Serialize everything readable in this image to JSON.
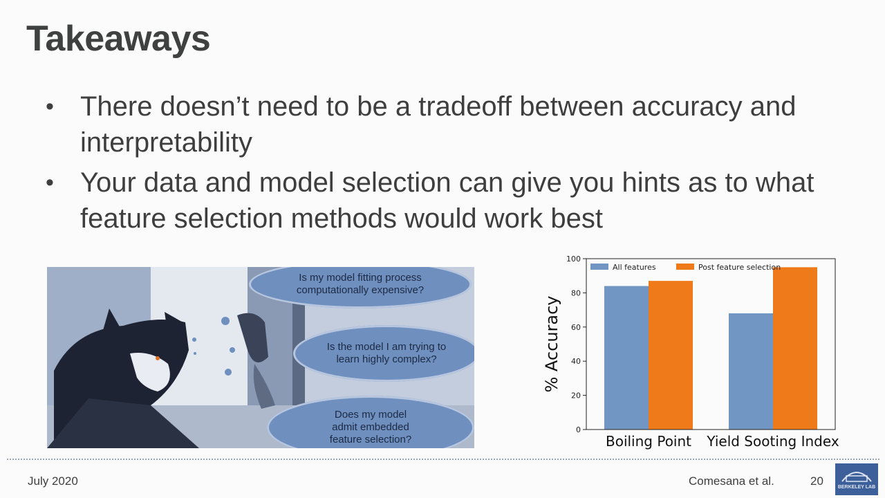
{
  "slide": {
    "title": "Takeaways",
    "bullets": [
      "There doesn’t need to be a tradeoff between accuracy and interpretability",
      "Your data and model selection can give you hints as to what feature selection methods would work best"
    ]
  },
  "bubbles": [
    "Is my model fitting process computationally expensive?",
    "Is the model I am trying to learn highly complex?",
    "Does my model admit embedded feature selection?"
  ],
  "chart_data": {
    "type": "bar",
    "categories": [
      "Boiling Point",
      "Yield Sooting Index"
    ],
    "series": [
      {
        "name": "All features",
        "values": [
          84,
          68
        ],
        "color": "#7196c3"
      },
      {
        "name": "Post feature selection",
        "values": [
          87,
          95
        ],
        "color": "#ef7a1a"
      }
    ],
    "ylabel": "% Accuracy",
    "xlabel": "",
    "ylim": [
      0,
      100
    ],
    "yticks": [
      0,
      20,
      40,
      60,
      80,
      100
    ],
    "legend": "top-left",
    "grid": false
  },
  "footer": {
    "date": "July 2020",
    "author": "Comesana et al.",
    "page": "20",
    "logo_text": "BERKELEY LAB"
  },
  "icons": {
    "logo": "berkeley-lab-logo",
    "photo": "cat-thinking-photo"
  }
}
